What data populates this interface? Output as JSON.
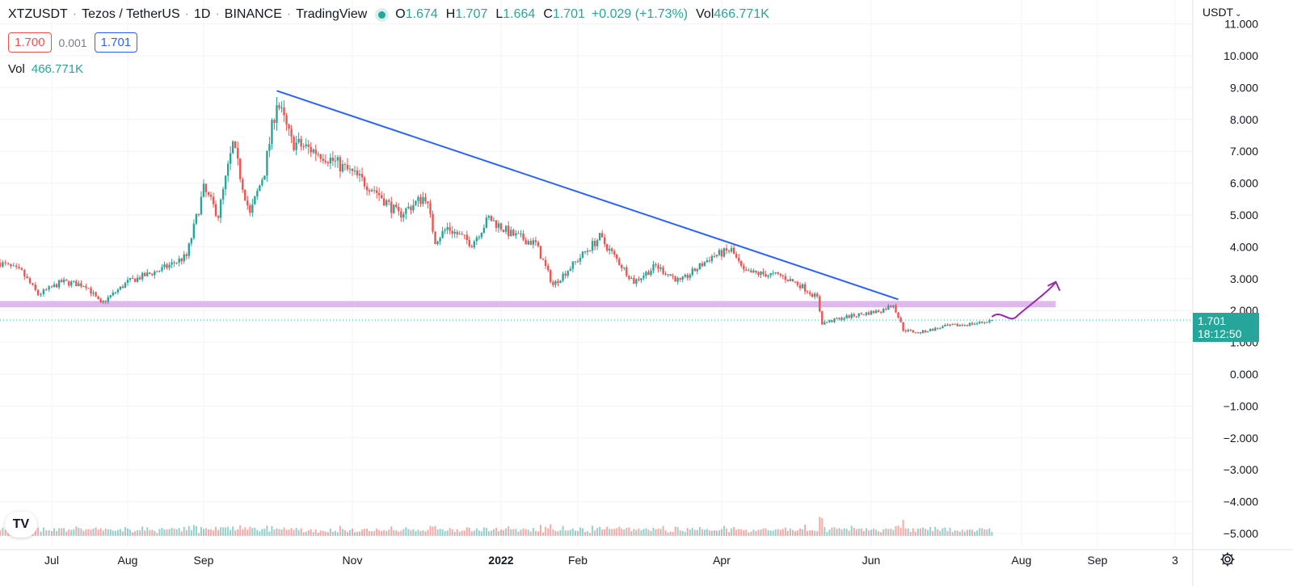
{
  "header": {
    "symbol": "XTZUSDT",
    "description": "Tezos / TetherUS",
    "interval": "1D",
    "exchange": "BINANCE",
    "source": "TradingView",
    "ohlc": {
      "o_label": "O",
      "o": "1.674",
      "h_label": "H",
      "h": "1.707",
      "l_label": "L",
      "l": "1.664",
      "c_label": "C",
      "c": "1.701",
      "change": "+0.029 (+1.73%)",
      "vol_label": "Vol",
      "vol": "466.771K"
    }
  },
  "bid_ask": {
    "bid": "1.700",
    "spread": "0.001",
    "ask": "1.701"
  },
  "volume_legend": {
    "label": "Vol",
    "value": "466.771K"
  },
  "price_scale": {
    "currency": "USDT",
    "last_price": "1.701",
    "countdown": "18:12:50"
  },
  "logo_text": "TV",
  "colors": {
    "up": "#26a69a",
    "down": "#ef5350",
    "trendline": "#2962ff",
    "support_zone": "#d7a8ea",
    "projection": "#9c27b0",
    "last_price_line": "#26a69a"
  },
  "icons": {
    "settings": "gear-icon",
    "currency_dropdown": "chevron-down-icon",
    "status": "market-open-dot"
  },
  "chart_data": {
    "type": "candlestick",
    "interval": "1D",
    "x_tick_labels": [
      "Jul",
      "Aug",
      "Sep",
      "Nov",
      "2022",
      "Feb",
      "Apr",
      "Jun",
      "Aug",
      "Sep",
      "3"
    ],
    "y_tick_labels": [
      "11.000",
      "10.000",
      "9.000",
      "8.000",
      "7.000",
      "6.000",
      "5.000",
      "4.000",
      "3.000",
      "2.000",
      "1.000",
      "0.000",
      "−1.000",
      "−2.000",
      "−3.000",
      "−4.000",
      "−5.000"
    ],
    "ylim": [
      -5.3,
      11
    ],
    "price_path": [
      {
        "date": "2021-06-12",
        "close": 3.5
      },
      {
        "date": "2021-06-20",
        "close": 3.2
      },
      {
        "date": "2021-06-26",
        "close": 2.5
      },
      {
        "date": "2021-07-05",
        "close": 2.9
      },
      {
        "date": "2021-07-15",
        "close": 2.8
      },
      {
        "date": "2021-07-21",
        "close": 2.2
      },
      {
        "date": "2021-08-01",
        "close": 2.9
      },
      {
        "date": "2021-08-15",
        "close": 3.3
      },
      {
        "date": "2021-08-25",
        "close": 3.7
      },
      {
        "date": "2021-09-01",
        "close": 5.8
      },
      {
        "date": "2021-09-07",
        "close": 5.0
      },
      {
        "date": "2021-09-13",
        "close": 7.2
      },
      {
        "date": "2021-09-20",
        "close": 5.0
      },
      {
        "date": "2021-09-26",
        "close": 6.4
      },
      {
        "date": "2021-10-01",
        "close": 8.6
      },
      {
        "date": "2021-10-07",
        "close": 7.3
      },
      {
        "date": "2021-10-20",
        "close": 6.9
      },
      {
        "date": "2021-11-01",
        "close": 6.3
      },
      {
        "date": "2021-11-10",
        "close": 5.8
      },
      {
        "date": "2021-11-20",
        "close": 5.0
      },
      {
        "date": "2021-12-01",
        "close": 5.6
      },
      {
        "date": "2021-12-05",
        "close": 4.2
      },
      {
        "date": "2021-12-10",
        "close": 4.6
      },
      {
        "date": "2021-12-20",
        "close": 4.1
      },
      {
        "date": "2021-12-27",
        "close": 4.9
      },
      {
        "date": "2022-01-05",
        "close": 4.4
      },
      {
        "date": "2022-01-15",
        "close": 4.1
      },
      {
        "date": "2022-01-22",
        "close": 2.8
      },
      {
        "date": "2022-02-01",
        "close": 3.6
      },
      {
        "date": "2022-02-10",
        "close": 4.3
      },
      {
        "date": "2022-02-18",
        "close": 3.5
      },
      {
        "date": "2022-02-24",
        "close": 2.9
      },
      {
        "date": "2022-03-05",
        "close": 3.4
      },
      {
        "date": "2022-03-15",
        "close": 2.9
      },
      {
        "date": "2022-03-28",
        "close": 3.7
      },
      {
        "date": "2022-04-05",
        "close": 3.9
      },
      {
        "date": "2022-04-10",
        "close": 3.2
      },
      {
        "date": "2022-04-25",
        "close": 3.1
      },
      {
        "date": "2022-05-03",
        "close": 2.8
      },
      {
        "date": "2022-05-10",
        "close": 2.4
      },
      {
        "date": "2022-05-12",
        "close": 1.6
      },
      {
        "date": "2022-05-22",
        "close": 1.8
      },
      {
        "date": "2022-06-05",
        "close": 2.0
      },
      {
        "date": "2022-06-10",
        "close": 2.2
      },
      {
        "date": "2022-06-14",
        "close": 1.4
      },
      {
        "date": "2022-06-20",
        "close": 1.3
      },
      {
        "date": "2022-07-01",
        "close": 1.5
      },
      {
        "date": "2022-07-14",
        "close": 1.6
      },
      {
        "date": "2022-07-20",
        "close": 1.701
      }
    ],
    "trendline": {
      "start": {
        "date": "2021-10-01",
        "price": 8.9
      },
      "end": {
        "date": "2022-06-12",
        "price": 2.35
      }
    },
    "support_zone": {
      "start_date": "2021-06-12",
      "end_date": "2022-08-15",
      "low": 2.1,
      "high": 2.3
    },
    "projection_arrow": {
      "start": {
        "date": "2022-07-20",
        "price": 1.8
      },
      "end": {
        "date": "2022-08-15",
        "price": 2.9
      }
    },
    "last_price": 1.701,
    "grid": true
  }
}
